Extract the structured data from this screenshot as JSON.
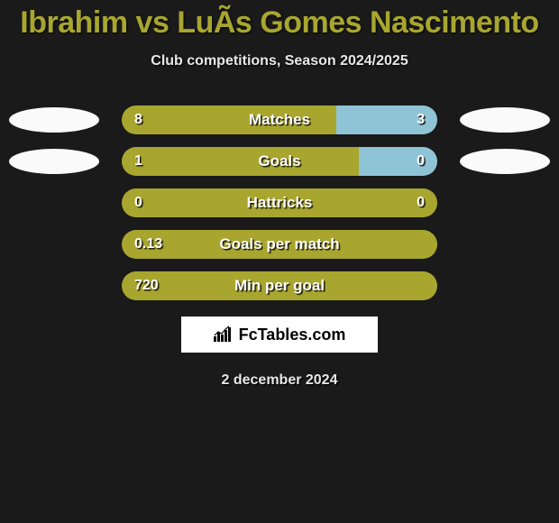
{
  "title": "Ibrahim vs LuÃ­s Gomes Nascimento",
  "subtitle": "Club competitions, Season 2024/2025",
  "date": "2 december 2024",
  "logo_text": "FcTables.com",
  "colors": {
    "left_bar": "#a8a62f",
    "right_bar": "#8fc4d6",
    "background": "#1a1a1a",
    "ellipse": "#fafafa",
    "title": "#a8a62f",
    "text": "#e8e8e8"
  },
  "rows": [
    {
      "metric": "Matches",
      "left": "8",
      "right": "3",
      "left_pct": 68,
      "right_pct": 32,
      "show_ellipses": true
    },
    {
      "metric": "Goals",
      "left": "1",
      "right": "0",
      "left_pct": 75,
      "right_pct": 25,
      "show_ellipses": true
    },
    {
      "metric": "Hattricks",
      "left": "0",
      "right": "0",
      "left_pct": 100,
      "right_pct": 0,
      "show_ellipses": false
    },
    {
      "metric": "Goals per match",
      "left": "0.13",
      "right": "",
      "left_pct": 100,
      "right_pct": 0,
      "show_ellipses": false
    },
    {
      "metric": "Min per goal",
      "left": "720",
      "right": "",
      "left_pct": 100,
      "right_pct": 0,
      "show_ellipses": false
    }
  ]
}
